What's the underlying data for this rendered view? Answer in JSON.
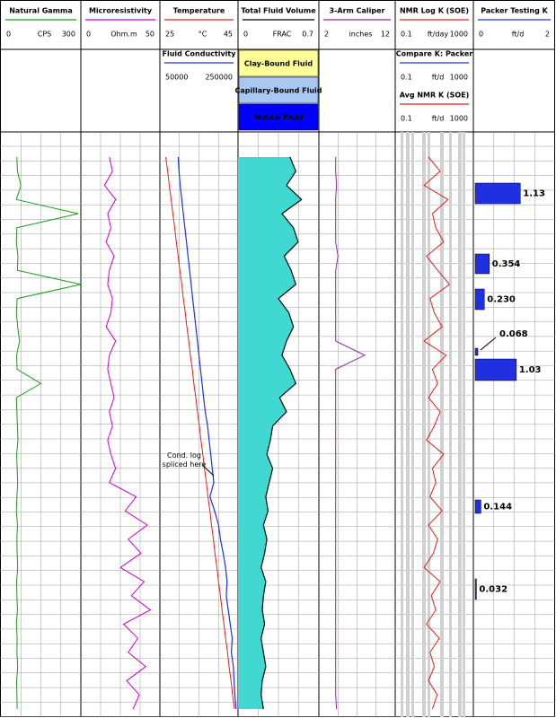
{
  "tracks": [
    {
      "title": "Natural Gamma",
      "min": 0,
      "unit": "CPS",
      "max": 300,
      "color": "#1a9a1a",
      "values": [
        60,
        62,
        75,
        58,
        290,
        60,
        58,
        64,
        62,
        300,
        61,
        58,
        63,
        70,
        59,
        61,
        150,
        58,
        60,
        62,
        64,
        59,
        61,
        63,
        60,
        58,
        62,
        60,
        61,
        63,
        59,
        60,
        62,
        58,
        61,
        60,
        63,
        59,
        60,
        61
      ]
    },
    {
      "title": "Microresistivity",
      "min": 0,
      "unit": "Ohm.m",
      "max": 50,
      "color": "#cc00cc",
      "values": [
        18,
        20,
        15,
        22,
        17,
        19,
        16,
        21,
        18,
        17,
        20,
        19,
        16,
        22,
        18,
        17,
        19,
        21,
        18,
        20,
        17,
        19,
        22,
        18,
        35,
        28,
        42,
        30,
        38,
        25,
        40,
        32,
        44,
        27,
        36,
        30,
        41,
        29,
        37,
        33
      ]
    },
    {
      "title": "Temperature",
      "min": 25,
      "unit": "°C",
      "max": 45,
      "color": "#e02020",
      "values": [
        26.5,
        27,
        27.4,
        27.9,
        28.3,
        28.8,
        29.2,
        29.7,
        30.1,
        30.6,
        31,
        31.5,
        31.9,
        32.4,
        32.8,
        33.3,
        33.7,
        34.2,
        34.6,
        35.1,
        35.5,
        36,
        36.4,
        36.9,
        37.3,
        37.8,
        38.2,
        38.7,
        39.1,
        39.6,
        40,
        40.5,
        40.9,
        41.4,
        41.8,
        42.3,
        42.7,
        43.2,
        43.6,
        44.1
      ]
    },
    {
      "title": "Total Fluid Volume",
      "min": 0,
      "unit": "FRAC",
      "max": 0.7,
      "color": "#000000",
      "values": [
        0.45,
        0.5,
        0.42,
        0.55,
        0.38,
        0.48,
        0.52,
        0.4,
        0.46,
        0.5,
        0.35,
        0.44,
        0.48,
        0.42,
        0.38,
        0.45,
        0.5,
        0.36,
        0.42,
        0.3,
        0.28,
        0.25,
        0.3,
        0.27,
        0.24,
        0.26,
        0.22,
        0.25,
        0.23,
        0.2,
        0.24,
        0.22,
        0.21,
        0.23,
        0.2,
        0.22,
        0.24,
        0.21,
        0.2,
        0.22
      ]
    },
    {
      "title": "3-Arm Caliper",
      "min": 2,
      "unit": "inches",
      "max": 12,
      "color": "#8a2a9a",
      "values": [
        4.2,
        4.2,
        4.3,
        4.2,
        4.2,
        4.2,
        4.2,
        4.5,
        4.2,
        4.2,
        4.2,
        4.2,
        4.2,
        4.2,
        8,
        4.2,
        4.2,
        4.2,
        4.2,
        4.2,
        4.2,
        4.2,
        4.2,
        4.2,
        4.2,
        4.2,
        4.2,
        4.2,
        4.2,
        4.2,
        4.2,
        4.2,
        4.2,
        4.2,
        4.2,
        4.2,
        4.2,
        4.2,
        4.2,
        4.3
      ]
    },
    {
      "title": "NMR Log K (SOE)",
      "min": 0.1,
      "unit": "ft/day",
      "max": 1000,
      "color": "#e02020",
      "log": true,
      "values": [
        5,
        20,
        3,
        50,
        8,
        12,
        30,
        4,
        15,
        60,
        6,
        10,
        25,
        3,
        40,
        8,
        15,
        5,
        20,
        10,
        4,
        30,
        8,
        12,
        6,
        25,
        5,
        15,
        9,
        3,
        20,
        7,
        12,
        4,
        18,
        6,
        10,
        5,
        14,
        8
      ]
    },
    {
      "title": "Packer Testing K",
      "min": 0,
      "unit": "ft/d",
      "max": 2,
      "color": "#2030e0",
      "values": [
        1.13,
        0.354,
        0.23,
        0.068,
        1.03,
        0.144,
        0.032
      ],
      "value_labels": [
        "1.13",
        "0.354",
        "0.230",
        "0.068",
        "1.03",
        "0.144",
        "0.032"
      ]
    }
  ],
  "conductivity": {
    "title": "Fluid Conductivity",
    "min": 50000,
    "max": 250000,
    "color": "#2030e0",
    "values": [
      97000,
      99000,
      102000,
      106000,
      110000,
      114000,
      118000,
      122000,
      126000,
      130000,
      134000,
      138000,
      142000,
      146000,
      150000,
      154000,
      158000,
      162000,
      166000,
      172000,
      176000,
      180000,
      184000,
      188000,
      178000,
      190000,
      200000,
      205000,
      212000,
      218000,
      222000,
      220000,
      225000,
      230000,
      235000,
      233000,
      238000,
      240000,
      242000,
      245000
    ]
  },
  "fluid_legend": [
    {
      "label": "Clay-Bound Fluid",
      "color": "#ffff99"
    },
    {
      "label": "Capillary-Bound Fluid",
      "color": "#a8c8f0"
    },
    {
      "label": "Mobile Fluid",
      "color": "#0000ff"
    }
  ],
  "fill_color": "#40d8d0",
  "k_legend": [
    {
      "title": "Compare K: Packer",
      "min": 0.1,
      "unit": "ft/d",
      "max": 1000,
      "color": "#2030e0"
    },
    {
      "title": "Avg NMR K (SOE)",
      "min": 0.1,
      "unit": "ft/d",
      "max": 1000,
      "color": "#e02020"
    }
  ],
  "annotation": "Cond. log\nspliced here"
}
